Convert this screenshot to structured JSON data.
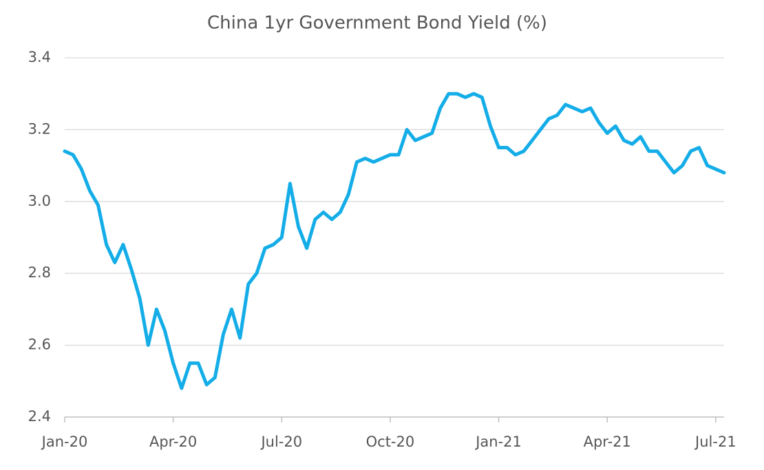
{
  "chart_data": {
    "type": "line",
    "title": "China 1yr Government Bond Yield (%)",
    "categories": [
      "Jan-20",
      null,
      null,
      null,
      null,
      null,
      null,
      null,
      null,
      null,
      null,
      null,
      null,
      "Apr-20",
      null,
      null,
      null,
      null,
      null,
      null,
      null,
      null,
      null,
      null,
      null,
      null,
      "Jul-20",
      null,
      null,
      null,
      null,
      null,
      null,
      null,
      null,
      null,
      null,
      null,
      null,
      "Oct-20",
      null,
      null,
      null,
      null,
      null,
      null,
      null,
      null,
      null,
      null,
      null,
      null,
      "Jan-21",
      null,
      null,
      null,
      null,
      null,
      null,
      null,
      null,
      null,
      null,
      null,
      null,
      "Apr-21",
      null,
      null,
      null,
      null,
      null,
      null,
      null,
      null,
      null,
      null,
      null,
      null,
      "Jul-21",
      null
    ],
    "series": [
      {
        "name": "China 1yr Government Bond Yield",
        "color": "#14ade8",
        "values": [
          3.14,
          3.13,
          3.09,
          3.03,
          2.99,
          2.88,
          2.83,
          2.88,
          2.81,
          2.73,
          2.6,
          2.7,
          2.64,
          2.55,
          2.48,
          2.55,
          2.55,
          2.49,
          2.51,
          2.63,
          2.7,
          2.62,
          2.77,
          2.8,
          2.87,
          2.88,
          2.9,
          3.05,
          2.93,
          2.87,
          2.95,
          2.97,
          2.95,
          2.97,
          3.02,
          3.11,
          3.12,
          3.11,
          3.12,
          3.13,
          3.13,
          3.2,
          3.17,
          3.18,
          3.19,
          3.26,
          3.3,
          3.3,
          3.29,
          3.3,
          3.29,
          3.21,
          3.15,
          3.15,
          3.13,
          3.14,
          3.17,
          3.2,
          3.23,
          3.24,
          3.27,
          3.26,
          3.25,
          3.26,
          3.22,
          3.19,
          3.21,
          3.17,
          3.16,
          3.18,
          3.14,
          3.14,
          3.11,
          3.08,
          3.1,
          3.14,
          3.15,
          3.1,
          3.09,
          3.08
        ]
      }
    ],
    "ylim": [
      2.4,
      3.4
    ],
    "yticks": [
      {
        "value": 2.4,
        "label": "2.4"
      },
      {
        "value": 2.6,
        "label": "2.6"
      },
      {
        "value": 2.8,
        "label": "2.8"
      },
      {
        "value": 3.0,
        "label": "3.0"
      },
      {
        "value": 3.2,
        "label": "3.2"
      },
      {
        "value": 3.4,
        "label": "3.4"
      }
    ],
    "grid": true
  }
}
